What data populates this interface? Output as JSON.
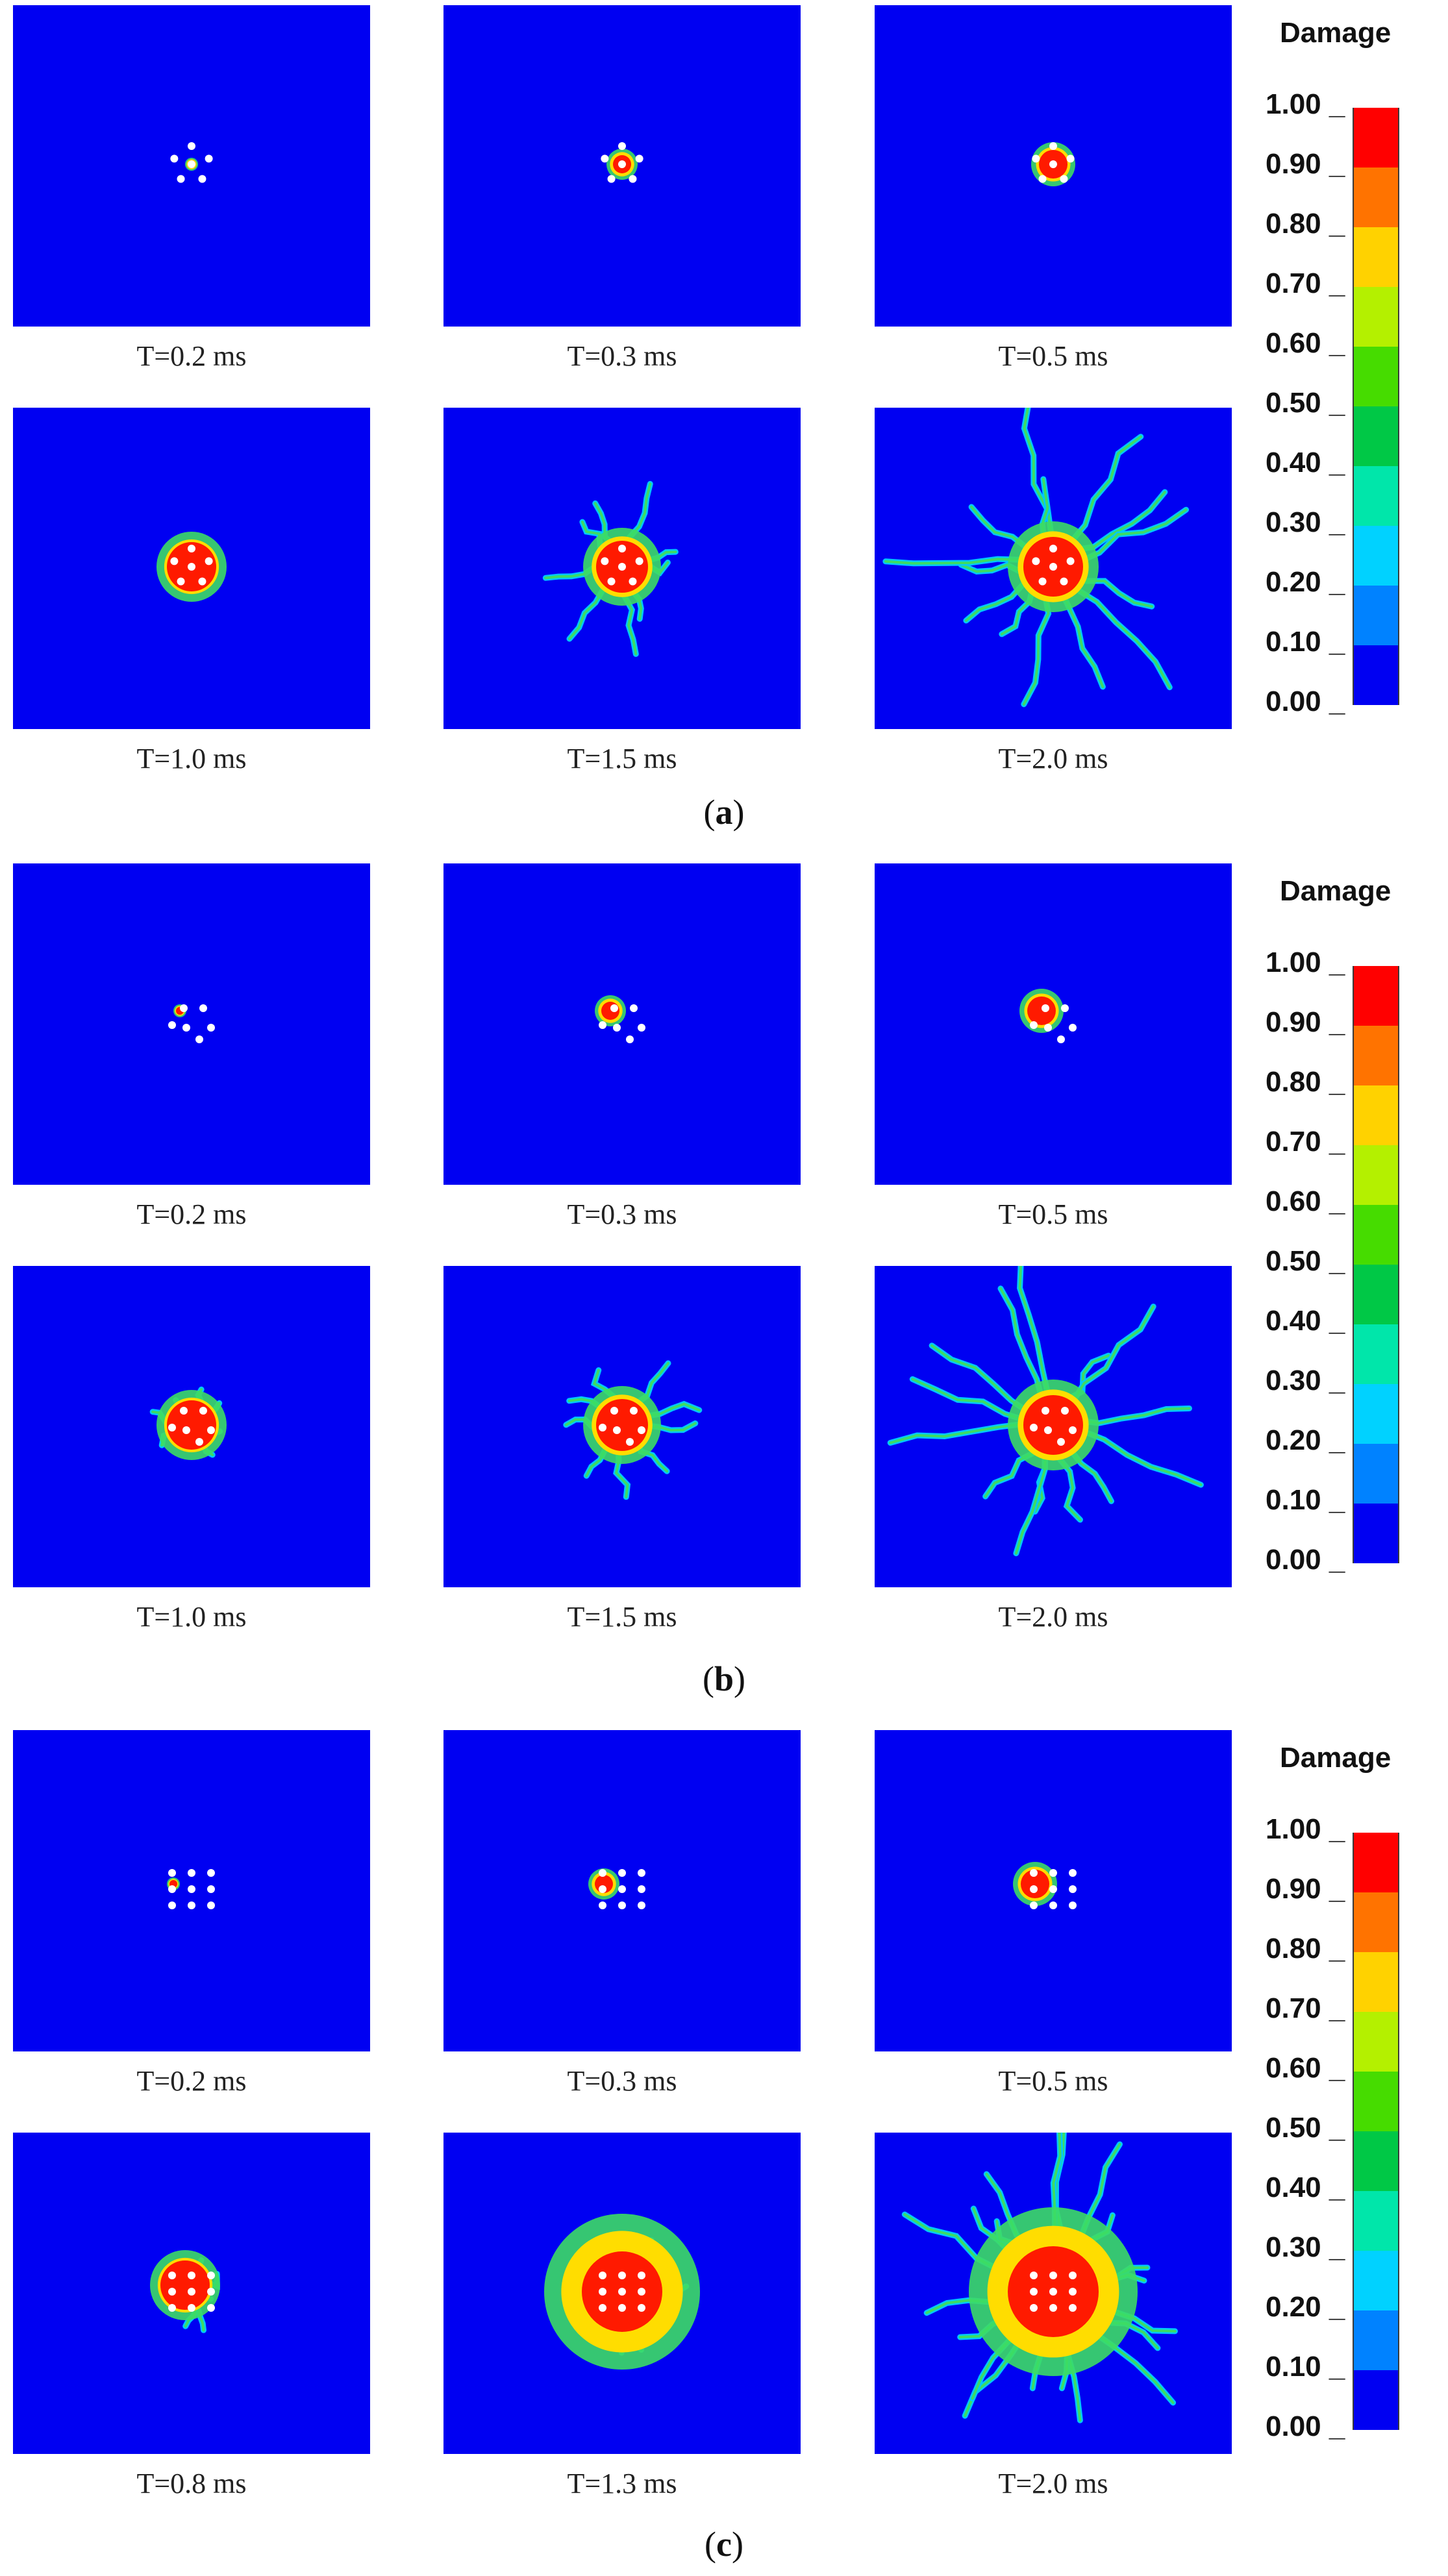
{
  "figure": {
    "groups": [
      {
        "id": "a",
        "sublabel": "a",
        "times": [
          "T=0.2 ms",
          "T=0.3 ms",
          "T=0.5 ms",
          "T=1.0 ms",
          "T=1.5 ms",
          "T=2.0 ms"
        ],
        "hole_pattern": "pentagon-5-holes",
        "stages": [
          "initial",
          "small",
          "medium",
          "core",
          "cracks-short",
          "cracks-long"
        ]
      },
      {
        "id": "b",
        "sublabel": "b",
        "times": [
          "T=0.2 ms",
          "T=0.3 ms",
          "T=0.5 ms",
          "T=1.0 ms",
          "T=1.5 ms",
          "T=2.0 ms"
        ],
        "hole_pattern": "irregular-6-holes",
        "stages": [
          "initial",
          "small",
          "medium",
          "core",
          "cracks-short",
          "cracks-long"
        ]
      },
      {
        "id": "c",
        "sublabel": "c",
        "times": [
          "T=0.2 ms",
          "T=0.3 ms",
          "T=0.5 ms",
          "T=0.8 ms",
          "T=1.3 ms",
          "T=2.0 ms"
        ],
        "hole_pattern": "grid-3x3-holes",
        "stages": [
          "initial",
          "small",
          "medium",
          "core",
          "cracks-short",
          "cracks-long"
        ]
      }
    ],
    "legend": {
      "title": "Damage",
      "ticks": [
        "1.00",
        "0.90",
        "0.80",
        "0.70",
        "0.60",
        "0.50",
        "0.40",
        "0.30",
        "0.20",
        "0.10",
        "0.00"
      ],
      "colors": [
        "#ff0000",
        "#ff7300",
        "#ffd200",
        "#b4f000",
        "#46dc00",
        "#00c846",
        "#00e6aa",
        "#00d2ff",
        "#0082ff",
        "#0000f2"
      ]
    },
    "colors": {
      "background": "#0000f2",
      "hole": "#ffffff",
      "core": "#ff1a00",
      "halo": "#ffdd00",
      "crack": "#3cdc64",
      "crack_edge": "#00c8ff"
    }
  }
}
